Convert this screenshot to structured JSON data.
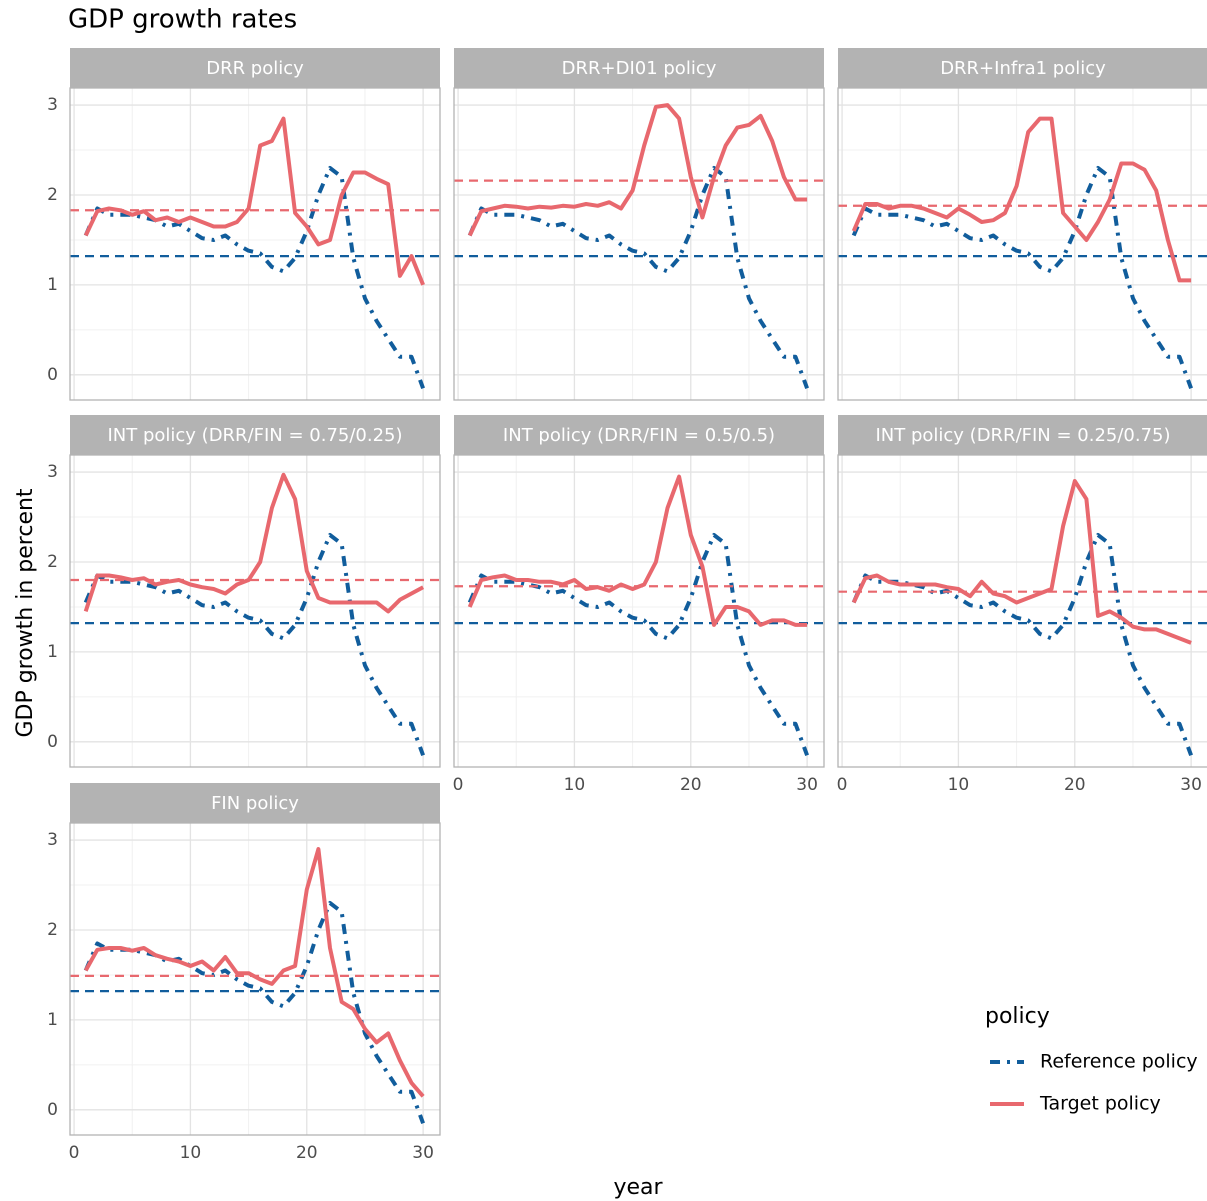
{
  "title": "GDP growth rates",
  "xlabel": "year",
  "ylabel": "GDP growth in percent",
  "x": [
    1,
    2,
    3,
    4,
    5,
    6,
    7,
    8,
    9,
    10,
    11,
    12,
    13,
    14,
    15,
    16,
    17,
    18,
    19,
    20,
    21,
    22,
    23,
    24,
    25,
    26,
    27,
    28,
    29,
    30
  ],
  "xlim": [
    -0.35,
    31.45
  ],
  "ylim": [
    -0.28,
    3.19
  ],
  "xticks": [
    0,
    10,
    20,
    30
  ],
  "yticks": [
    0,
    1,
    2,
    3
  ],
  "minor_xticks": [
    5,
    15,
    25
  ],
  "minor_yticks": [
    0.5,
    1.5,
    2.5
  ],
  "grid": true,
  "legend": {
    "title": "policy",
    "position": "bottom-right",
    "entries": [
      {
        "name": "Reference policy",
        "color": "#115d9c",
        "linestyle": "dotdash"
      },
      {
        "name": "Target policy",
        "color": "#e8686e",
        "linestyle": "solid"
      }
    ]
  },
  "chart_data": [
    {
      "type": "line",
      "title": "DRR policy",
      "series": [
        {
          "values": [
            1.55,
            1.85,
            1.78,
            1.78,
            1.78,
            1.75,
            1.72,
            1.65,
            1.68,
            1.6,
            1.52,
            1.5,
            1.55,
            1.45,
            1.38,
            1.35,
            1.2,
            1.15,
            1.3,
            1.6,
            2.0,
            2.3,
            2.2,
            1.3,
            0.85,
            0.6,
            0.4,
            0.2,
            0.2,
            -0.15
          ],
          "hline": 1.32
        },
        {
          "values": [
            1.55,
            1.82,
            1.85,
            1.83,
            1.78,
            1.82,
            1.72,
            1.75,
            1.7,
            1.75,
            1.7,
            1.65,
            1.65,
            1.7,
            1.85,
            2.55,
            2.6,
            2.85,
            1.8,
            1.65,
            1.45,
            1.5,
            2.0,
            2.25,
            2.25,
            2.18,
            2.12,
            1.1,
            1.32,
            1.0
          ],
          "hline": 1.83
        }
      ]
    },
    {
      "type": "line",
      "title": "DRR+DI01 policy",
      "series": [
        {
          "values": [
            1.55,
            1.85,
            1.78,
            1.78,
            1.78,
            1.75,
            1.72,
            1.65,
            1.68,
            1.6,
            1.52,
            1.5,
            1.55,
            1.45,
            1.38,
            1.35,
            1.2,
            1.15,
            1.3,
            1.6,
            2.0,
            2.3,
            2.2,
            1.3,
            0.85,
            0.6,
            0.4,
            0.2,
            0.2,
            -0.15
          ],
          "hline": 1.32
        },
        {
          "values": [
            1.55,
            1.82,
            1.85,
            1.88,
            1.87,
            1.85,
            1.87,
            1.86,
            1.88,
            1.87,
            1.9,
            1.88,
            1.92,
            1.85,
            2.05,
            2.55,
            2.98,
            3.0,
            2.85,
            2.2,
            1.75,
            2.2,
            2.55,
            2.75,
            2.78,
            2.88,
            2.6,
            2.2,
            1.95,
            1.95
          ],
          "hline": 2.16
        }
      ]
    },
    {
      "type": "line",
      "title": "DRR+Infra1 policy",
      "series": [
        {
          "values": [
            1.55,
            1.85,
            1.78,
            1.78,
            1.78,
            1.75,
            1.72,
            1.65,
            1.68,
            1.6,
            1.52,
            1.5,
            1.55,
            1.45,
            1.38,
            1.35,
            1.2,
            1.15,
            1.3,
            1.6,
            2.0,
            2.3,
            2.2,
            1.3,
            0.85,
            0.6,
            0.4,
            0.2,
            0.2,
            -0.15
          ],
          "hline": 1.32
        },
        {
          "values": [
            1.6,
            1.9,
            1.9,
            1.85,
            1.88,
            1.88,
            1.85,
            1.8,
            1.75,
            1.85,
            1.78,
            1.7,
            1.72,
            1.8,
            2.1,
            2.7,
            2.85,
            2.85,
            1.8,
            1.65,
            1.5,
            1.7,
            1.95,
            2.35,
            2.35,
            2.28,
            2.05,
            1.5,
            1.05,
            1.05
          ],
          "hline": 1.88
        }
      ]
    },
    {
      "type": "line",
      "title": "INT policy (DRR/FIN = 0.75/0.25)",
      "series": [
        {
          "values": [
            1.55,
            1.85,
            1.78,
            1.78,
            1.78,
            1.75,
            1.72,
            1.65,
            1.68,
            1.6,
            1.52,
            1.5,
            1.55,
            1.45,
            1.38,
            1.35,
            1.2,
            1.15,
            1.3,
            1.6,
            2.0,
            2.3,
            2.2,
            1.3,
            0.85,
            0.6,
            0.4,
            0.2,
            0.2,
            -0.15
          ],
          "hline": 1.32
        },
        {
          "values": [
            1.45,
            1.85,
            1.85,
            1.83,
            1.8,
            1.82,
            1.75,
            1.78,
            1.8,
            1.75,
            1.72,
            1.7,
            1.65,
            1.75,
            1.8,
            2.0,
            2.6,
            2.97,
            2.7,
            1.9,
            1.6,
            1.55,
            1.55,
            1.55,
            1.55,
            1.55,
            1.45,
            1.58,
            1.65,
            1.72
          ],
          "hline": 1.8
        }
      ]
    },
    {
      "type": "line",
      "title": "INT policy (DRR/FIN = 0.5/0.5)",
      "series": [
        {
          "values": [
            1.55,
            1.85,
            1.78,
            1.78,
            1.78,
            1.75,
            1.72,
            1.65,
            1.68,
            1.6,
            1.52,
            1.5,
            1.55,
            1.45,
            1.38,
            1.35,
            1.2,
            1.15,
            1.3,
            1.6,
            2.0,
            2.3,
            2.2,
            1.3,
            0.85,
            0.6,
            0.4,
            0.2,
            0.2,
            -0.15
          ],
          "hline": 1.32
        },
        {
          "values": [
            1.5,
            1.8,
            1.83,
            1.85,
            1.8,
            1.8,
            1.78,
            1.78,
            1.75,
            1.8,
            1.7,
            1.72,
            1.68,
            1.75,
            1.7,
            1.75,
            2.0,
            2.6,
            2.95,
            2.3,
            1.95,
            1.3,
            1.5,
            1.5,
            1.45,
            1.3,
            1.35,
            1.35,
            1.3,
            1.3
          ],
          "hline": 1.73
        }
      ]
    },
    {
      "type": "line",
      "title": "INT policy (DRR/FIN = 0.25/0.75)",
      "series": [
        {
          "values": [
            1.55,
            1.85,
            1.78,
            1.78,
            1.78,
            1.75,
            1.72,
            1.65,
            1.68,
            1.6,
            1.52,
            1.5,
            1.55,
            1.45,
            1.38,
            1.35,
            1.2,
            1.15,
            1.3,
            1.6,
            2.0,
            2.3,
            2.2,
            1.3,
            0.85,
            0.6,
            0.4,
            0.2,
            0.2,
            -0.15
          ],
          "hline": 1.32
        },
        {
          "values": [
            1.55,
            1.82,
            1.85,
            1.78,
            1.75,
            1.75,
            1.75,
            1.75,
            1.72,
            1.7,
            1.62,
            1.78,
            1.65,
            1.62,
            1.55,
            1.6,
            1.65,
            1.7,
            2.4,
            2.9,
            2.7,
            1.4,
            1.45,
            1.38,
            1.28,
            1.25,
            1.25,
            1.2,
            1.15,
            1.1
          ],
          "hline": 1.67
        }
      ]
    },
    {
      "type": "line",
      "title": "FIN policy",
      "series": [
        {
          "values": [
            1.55,
            1.85,
            1.78,
            1.78,
            1.78,
            1.75,
            1.72,
            1.65,
            1.68,
            1.6,
            1.52,
            1.5,
            1.55,
            1.45,
            1.38,
            1.35,
            1.2,
            1.15,
            1.3,
            1.6,
            2.0,
            2.3,
            2.2,
            1.3,
            0.85,
            0.6,
            0.4,
            0.2,
            0.2,
            -0.15
          ],
          "hline": 1.32
        },
        {
          "values": [
            1.55,
            1.78,
            1.8,
            1.8,
            1.77,
            1.8,
            1.72,
            1.68,
            1.65,
            1.6,
            1.65,
            1.55,
            1.7,
            1.52,
            1.52,
            1.45,
            1.4,
            1.55,
            1.6,
            2.45,
            2.9,
            1.8,
            1.2,
            1.12,
            0.9,
            0.75,
            0.85,
            0.55,
            0.3,
            0.15
          ],
          "hline": 1.49
        }
      ]
    }
  ]
}
